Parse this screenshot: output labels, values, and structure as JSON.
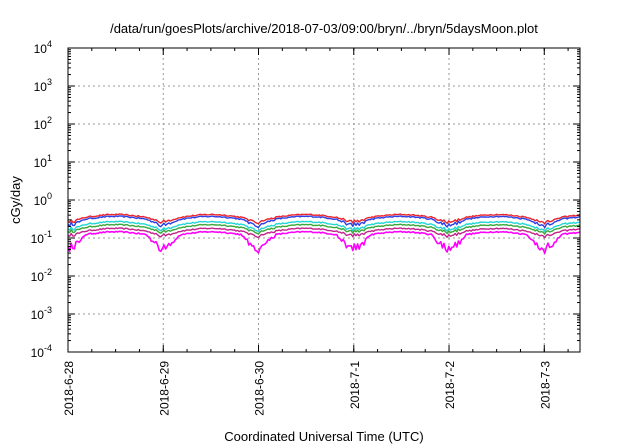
{
  "chart_data": {
    "type": "line",
    "title": "/data/run/goesPlots/archive/2018-07-03/09:00/bryn/../bryn/5daysMoon.plot",
    "xlabel": "Coordinated Universal Time (UTC)",
    "ylabel": "cGy/day",
    "yscale": "log",
    "ylim": [
      0.0001,
      10000
    ],
    "y_ticks": [
      {
        "base": "10",
        "exp": "-4"
      },
      {
        "base": "10",
        "exp": "-3"
      },
      {
        "base": "10",
        "exp": "-2"
      },
      {
        "base": "10",
        "exp": "-1"
      },
      {
        "base": "10",
        "exp": "0"
      },
      {
        "base": "10",
        "exp": "1"
      },
      {
        "base": "10",
        "exp": "2"
      },
      {
        "base": "10",
        "exp": "3"
      },
      {
        "base": "10",
        "exp": "4"
      }
    ],
    "xlim": [
      "2018-06-28T00:00",
      "2018-07-03T09:00"
    ],
    "x_ticks": [
      "2018-6-28",
      "2018-6-29",
      "2018-6-30",
      "2018-7-1",
      "2018-7-2",
      "2018-7-3"
    ],
    "grid": true,
    "series": [
      {
        "color": "#e8242f",
        "base": 0.37,
        "dip_depth": 0.3
      },
      {
        "color": "#2b3fe8",
        "base": 0.33,
        "dip_depth": 0.45
      },
      {
        "color": "#22d6d6",
        "base": 0.24,
        "dip_depth": 0.35
      },
      {
        "color": "#3aa83a",
        "base": 0.2,
        "dip_depth": 0.3
      },
      {
        "color": "#c2238c",
        "base": 0.16,
        "dip_depth": 0.3
      },
      {
        "color": "#ff00ff",
        "base": 0.13,
        "dip_depth": 1.6
      }
    ],
    "dip_days": [
      0,
      1,
      2,
      3,
      4,
      5
    ]
  }
}
